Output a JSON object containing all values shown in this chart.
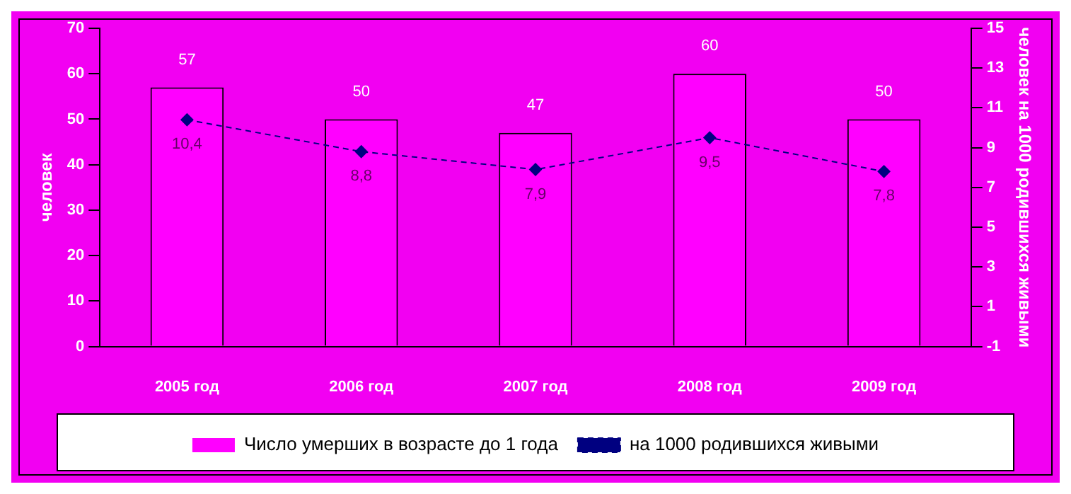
{
  "chart_data": {
    "type": "bar",
    "categories": [
      "2005 год",
      "2006 год",
      "2007 год",
      "2008 год",
      "2009 год"
    ],
    "ylabel": "человек",
    "y2label": "человек на 1000 родившихся живыми",
    "ylim": [
      0,
      70
    ],
    "yticks": [
      0,
      10,
      20,
      30,
      40,
      50,
      60,
      70
    ],
    "y2lim": [
      -1,
      15
    ],
    "y2ticks": [
      -1,
      1,
      3,
      5,
      7,
      9,
      11,
      13,
      15
    ],
    "grid": false,
    "legend": "bottom",
    "series": [
      {
        "name": "Число умерших в возрасте до 1 года",
        "color": "#ff00ff",
        "values": [
          57,
          50,
          47,
          60,
          50
        ],
        "value_labels": [
          "57",
          "50",
          "47",
          "60",
          "50"
        ]
      },
      {
        "name": "на 1000 родившихся живыми",
        "type": "line",
        "axis": "y2",
        "color": "#000080",
        "marker": "diamond",
        "line_style": "dashed",
        "values": [
          10.4,
          8.8,
          7.9,
          9.5,
          7.8
        ],
        "value_labels": [
          "10,4",
          "8,8",
          "7,9",
          "9,5",
          "7,8"
        ]
      }
    ]
  }
}
